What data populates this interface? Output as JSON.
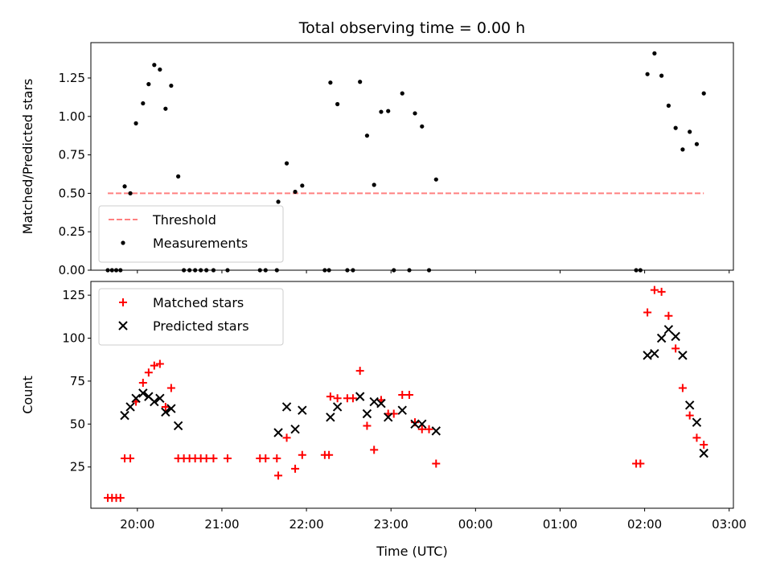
{
  "chart_data": [
    {
      "type": "scatter",
      "title": "Total observing time = 0.00 h",
      "xlabel": "",
      "ylabel": "Matched/Predicted stars",
      "xlim": [
        "19:27",
        "03:03"
      ],
      "ylim": [
        0,
        1.48
      ],
      "yticks": [
        "0.00",
        "0.25",
        "0.50",
        "0.75",
        "1.00",
        "1.25"
      ],
      "xtick_positions": [
        "20:00",
        "21:00",
        "22:00",
        "23:00",
        "00:00",
        "01:00",
        "02:00",
        "03:00"
      ],
      "legend": "lower-left",
      "threshold": {
        "name": "Threshold",
        "value": 0.5,
        "x_start": "19:39",
        "x_end": "02:42",
        "color": "#ff8080"
      },
      "series": [
        {
          "name": "Measurements",
          "marker": "dot",
          "color": "#000000",
          "points": [
            [
              "19:39",
              0.0
            ],
            [
              "19:42",
              0.0
            ],
            [
              "19:45",
              0.0
            ],
            [
              "19:48",
              0.0
            ],
            [
              "19:51",
              0.545
            ],
            [
              "19:55",
              0.5
            ],
            [
              "19:59",
              0.955
            ],
            [
              "20:04",
              1.085
            ],
            [
              "20:08",
              1.21
            ],
            [
              "20:12",
              1.335
            ],
            [
              "20:16",
              1.305
            ],
            [
              "20:20",
              1.05
            ],
            [
              "20:24",
              1.2
            ],
            [
              "20:29",
              0.61
            ],
            [
              "20:33",
              0.0
            ],
            [
              "20:37",
              0.0
            ],
            [
              "20:41",
              0.0
            ],
            [
              "20:45",
              0.0
            ],
            [
              "20:49",
              0.0
            ],
            [
              "20:54",
              0.0
            ],
            [
              "21:04",
              0.0
            ],
            [
              "21:27",
              0.0
            ],
            [
              "21:31",
              0.0
            ],
            [
              "21:39",
              0.0
            ],
            [
              "21:40",
              0.445
            ],
            [
              "21:46",
              0.695
            ],
            [
              "21:52",
              0.51
            ],
            [
              "21:57",
              0.55
            ],
            [
              "22:13",
              0.0
            ],
            [
              "22:16",
              0.0
            ],
            [
              "22:17",
              1.22
            ],
            [
              "22:22",
              1.08
            ],
            [
              "22:29",
              0.0
            ],
            [
              "22:33",
              0.0
            ],
            [
              "22:38",
              1.225
            ],
            [
              "22:43",
              0.875
            ],
            [
              "22:48",
              0.555
            ],
            [
              "22:53",
              1.03
            ],
            [
              "22:58",
              1.035
            ],
            [
              "23:02",
              0.0
            ],
            [
              "23:08",
              1.15
            ],
            [
              "23:13",
              0.0
            ],
            [
              "23:17",
              1.02
            ],
            [
              "23:22",
              0.935
            ],
            [
              "23:27",
              0.0
            ],
            [
              "23:32",
              0.59
            ],
            [
              "01:54",
              0.0
            ],
            [
              "01:57",
              0.0
            ],
            [
              "02:02",
              1.275
            ],
            [
              "02:07",
              1.41
            ],
            [
              "02:12",
              1.265
            ],
            [
              "02:17",
              1.07
            ],
            [
              "02:22",
              0.925
            ],
            [
              "02:27",
              0.785
            ],
            [
              "02:32",
              0.9
            ],
            [
              "02:37",
              0.82
            ],
            [
              "02:42",
              1.15
            ]
          ]
        }
      ]
    },
    {
      "type": "scatter",
      "title": "",
      "xlabel": "Time (UTC)",
      "ylabel": "Count",
      "xlim": [
        "19:27",
        "03:03"
      ],
      "ylim": [
        1,
        133
      ],
      "yticks": [
        "25",
        "50",
        "75",
        "100",
        "125"
      ],
      "xticks": [
        "20:00",
        "21:00",
        "22:00",
        "23:00",
        "00:00",
        "01:00",
        "02:00",
        "03:00"
      ],
      "legend": "upper-left",
      "series": [
        {
          "name": "Matched stars",
          "marker": "plus",
          "color": "#ff0000",
          "points": [
            [
              "19:39",
              7
            ],
            [
              "19:42",
              7
            ],
            [
              "19:45",
              7
            ],
            [
              "19:48",
              7
            ],
            [
              "19:51",
              30
            ],
            [
              "19:55",
              30
            ],
            [
              "19:59",
              63
            ],
            [
              "20:04",
              74
            ],
            [
              "20:08",
              80
            ],
            [
              "20:12",
              84
            ],
            [
              "20:16",
              85
            ],
            [
              "20:20",
              60
            ],
            [
              "20:24",
              71
            ],
            [
              "20:29",
              30
            ],
            [
              "20:33",
              30
            ],
            [
              "20:37",
              30
            ],
            [
              "20:41",
              30
            ],
            [
              "20:45",
              30
            ],
            [
              "20:49",
              30
            ],
            [
              "20:54",
              30
            ],
            [
              "21:04",
              30
            ],
            [
              "21:27",
              30
            ],
            [
              "21:31",
              30
            ],
            [
              "21:39",
              30
            ],
            [
              "21:40",
              20
            ],
            [
              "21:46",
              42
            ],
            [
              "21:52",
              24
            ],
            [
              "21:57",
              32
            ],
            [
              "22:13",
              32
            ],
            [
              "22:16",
              32
            ],
            [
              "22:17",
              66
            ],
            [
              "22:22",
              65
            ],
            [
              "22:29",
              65
            ],
            [
              "22:33",
              65
            ],
            [
              "22:38",
              81
            ],
            [
              "22:43",
              49
            ],
            [
              "22:48",
              35
            ],
            [
              "22:53",
              64
            ],
            [
              "22:58",
              56
            ],
            [
              "23:02",
              56
            ],
            [
              "23:08",
              67
            ],
            [
              "23:13",
              67
            ],
            [
              "23:17",
              51
            ],
            [
              "23:22",
              47
            ],
            [
              "23:27",
              47
            ],
            [
              "23:32",
              27
            ],
            [
              "01:54",
              27
            ],
            [
              "01:57",
              27
            ],
            [
              "02:02",
              115
            ],
            [
              "02:07",
              128
            ],
            [
              "02:12",
              127
            ],
            [
              "02:17",
              113
            ],
            [
              "02:22",
              94
            ],
            [
              "02:27",
              71
            ],
            [
              "02:32",
              55
            ],
            [
              "02:37",
              42
            ],
            [
              "02:42",
              38
            ]
          ]
        },
        {
          "name": "Predicted stars",
          "marker": "x",
          "color": "#000000",
          "points": [
            [
              "19:51",
              55
            ],
            [
              "19:55",
              60
            ],
            [
              "19:59",
              65
            ],
            [
              "20:04",
              68
            ],
            [
              "20:08",
              66
            ],
            [
              "20:12",
              63
            ],
            [
              "20:16",
              65
            ],
            [
              "20:20",
              57
            ],
            [
              "20:24",
              59
            ],
            [
              "20:29",
              49
            ],
            [
              "21:40",
              45
            ],
            [
              "21:46",
              60
            ],
            [
              "21:52",
              47
            ],
            [
              "21:57",
              58
            ],
            [
              "22:17",
              54
            ],
            [
              "22:22",
              60
            ],
            [
              "22:38",
              66
            ],
            [
              "22:43",
              56
            ],
            [
              "22:48",
              63
            ],
            [
              "22:53",
              62
            ],
            [
              "22:58",
              54
            ],
            [
              "23:08",
              58
            ],
            [
              "23:17",
              50
            ],
            [
              "23:22",
              50
            ],
            [
              "23:32",
              46
            ],
            [
              "02:02",
              90
            ],
            [
              "02:07",
              91
            ],
            [
              "02:12",
              100
            ],
            [
              "02:17",
              105
            ],
            [
              "02:22",
              101
            ],
            [
              "02:27",
              90
            ],
            [
              "02:32",
              61
            ],
            [
              "02:37",
              51
            ],
            [
              "02:42",
              33
            ]
          ]
        }
      ]
    }
  ]
}
